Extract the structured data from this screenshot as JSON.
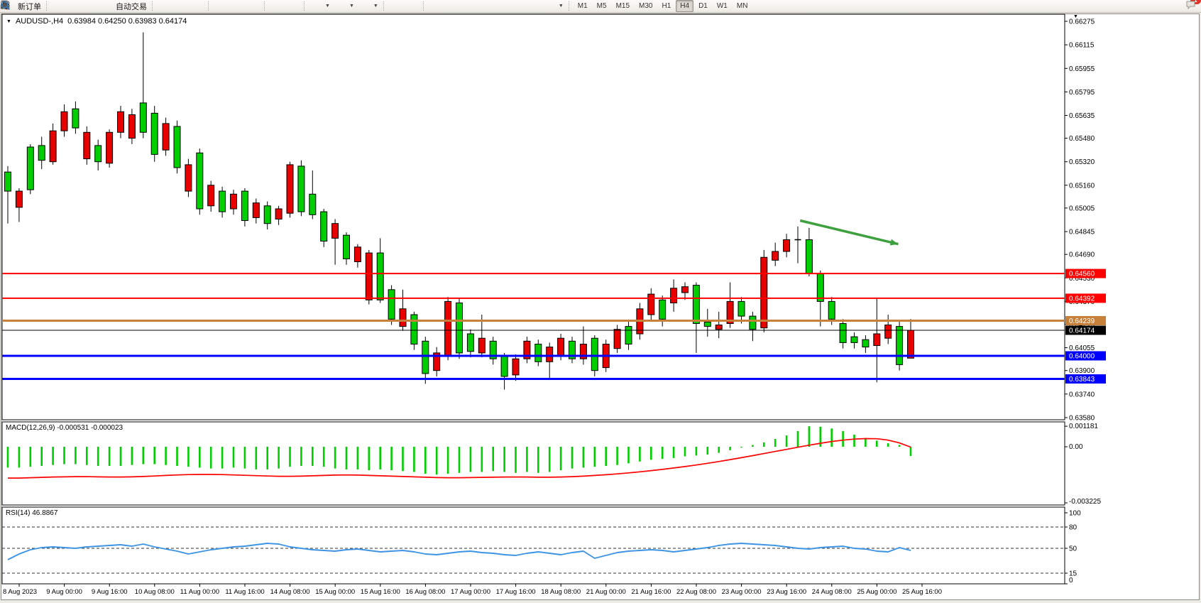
{
  "toolbar": {
    "new_order_label": "新订单",
    "autotrade_label": "自动交易",
    "timeframes": [
      "M1",
      "M5",
      "M15",
      "M30",
      "H1",
      "H4",
      "D1",
      "W1",
      "MN"
    ],
    "active_timeframe": "H4",
    "chat_badge": "1",
    "icon_names": [
      "new-order-icon",
      "styler-icon",
      "profile-icon",
      "signal-icon",
      "autotrade-icon",
      "bar-chart-icon",
      "candlestick-icon",
      "line-chart-icon",
      "zoom-in-icon",
      "zoom-out-icon",
      "tile-windows-icon",
      "chart-shift-icon",
      "autoscroll-icon",
      "indicators-icon",
      "periods-icon",
      "templates-icon",
      "cursor-icon",
      "crosshair-icon",
      "vertical-line-icon",
      "horizontal-line-icon",
      "trendline-icon",
      "channel-icon",
      "fibonacci-icon",
      "text-icon",
      "label-icon",
      "shapes-icon",
      "search-icon",
      "chat-icon"
    ]
  },
  "window": {
    "title_symbol": "AUDUSD-,H4",
    "title_ohlc": "0.63984 0.64250 0.63983 0.64174"
  },
  "chart_data": {
    "type": "candlestick",
    "symbol": "AUDUSD-",
    "timeframe": "H4",
    "current": {
      "open": "0.63984",
      "high": "0.64250",
      "low": "0.63983",
      "close": "0.64174"
    },
    "colors": {
      "up": "#E80000",
      "down": "#00CE00",
      "outline": "#000000"
    },
    "price_axis": [
      "0.66275",
      "0.66115",
      "0.65955",
      "0.65795",
      "0.65635",
      "0.65480",
      "0.65320",
      "0.65160",
      "0.65005",
      "0.64845",
      "0.64690",
      "0.64530",
      "0.64370",
      "0.64215",
      "0.64055",
      "0.63900",
      "0.63740",
      "0.63580"
    ],
    "time_axis": [
      "8 Aug 2023",
      "9 Aug 00:00",
      "9 Aug 16:00",
      "10 Aug 08:00",
      "11 Aug 00:00",
      "11 Aug 16:00",
      "14 Aug 08:00",
      "15 Aug 00:00",
      "15 Aug 16:00",
      "16 Aug 08:00",
      "17 Aug 00:00",
      "17 Aug 16:00",
      "18 Aug 08:00",
      "21 Aug 00:00",
      "21 Aug 16:00",
      "22 Aug 08:00",
      "23 Aug 00:00",
      "23 Aug 16:00",
      "24 Aug 08:00",
      "25 Aug 00:00",
      "25 Aug 16:00"
    ],
    "hlines": [
      {
        "price": 0.6456,
        "label": "0.64560",
        "color": "#FF0000",
        "width": 2
      },
      {
        "price": 0.64392,
        "label": "0.64392",
        "color": "#FF0000",
        "width": 2
      },
      {
        "price": 0.64239,
        "label": "0.64239",
        "color": "#C8813A",
        "width": 3
      },
      {
        "price": 0.64174,
        "label": "0.64174",
        "color": "#000000",
        "width": 1
      },
      {
        "price": 0.64,
        "label": "0.64000",
        "color": "#0000FF",
        "width": 3
      },
      {
        "price": 0.63843,
        "label": "0.63843",
        "color": "#0000FF",
        "width": 3
      }
    ],
    "arrow": {
      "start_bar": 70.2,
      "start_price": 0.6492,
      "end_bar": 78.9,
      "end_price": 0.6476,
      "color": "#3FA03F"
    },
    "candles": [
      [
        "G",
        0.6525,
        0.6512,
        0.6529,
        0.649
      ],
      [
        "R",
        0.6512,
        0.6501,
        0.6514,
        0.6491
      ],
      [
        "G",
        0.6542,
        0.6513,
        0.6544,
        0.651
      ],
      [
        "G",
        0.6543,
        0.6533,
        0.6549,
        0.6527
      ],
      [
        "R",
        0.6553,
        0.6532,
        0.6558,
        0.653
      ],
      [
        "R",
        0.6566,
        0.6553,
        0.6571,
        0.6549
      ],
      [
        "G",
        0.6568,
        0.6555,
        0.6573,
        0.6551
      ],
      [
        "R",
        0.6552,
        0.6534,
        0.6556,
        0.653
      ],
      [
        "G",
        0.6543,
        0.6532,
        0.6547,
        0.6526
      ],
      [
        "R",
        0.6552,
        0.6531,
        0.6554,
        0.6528
      ],
      [
        "R",
        0.6566,
        0.6552,
        0.657,
        0.6548
      ],
      [
        "R",
        0.6564,
        0.6548,
        0.6568,
        0.6544
      ],
      [
        "G",
        0.6572,
        0.6552,
        0.662,
        0.6548
      ],
      [
        "G",
        0.6565,
        0.6537,
        0.657,
        0.6532
      ],
      [
        "R",
        0.6558,
        0.654,
        0.6562,
        0.6536
      ],
      [
        "G",
        0.6556,
        0.6528,
        0.656,
        0.6524
      ],
      [
        "R",
        0.653,
        0.6512,
        0.6534,
        0.6508
      ],
      [
        "G",
        0.6538,
        0.65,
        0.6541,
        0.6496
      ],
      [
        "R",
        0.6516,
        0.6502,
        0.6519,
        0.6498
      ],
      [
        "G",
        0.6512,
        0.6498,
        0.6515,
        0.6494
      ],
      [
        "R",
        0.651,
        0.65,
        0.6513,
        0.6496
      ],
      [
        "G",
        0.6512,
        0.6492,
        0.6514,
        0.6488
      ],
      [
        "R",
        0.6504,
        0.6494,
        0.6507,
        0.649
      ],
      [
        "G",
        0.6502,
        0.649,
        0.6505,
        0.6486
      ],
      [
        "R",
        0.65,
        0.6493,
        0.6502,
        0.6489
      ],
      [
        "R",
        0.653,
        0.6497,
        0.6532,
        0.6494
      ],
      [
        "G",
        0.6529,
        0.6498,
        0.6533,
        0.6495
      ],
      [
        "G",
        0.651,
        0.6496,
        0.6526,
        0.6493
      ],
      [
        "G",
        0.6498,
        0.6478,
        0.65,
        0.6474
      ],
      [
        "R",
        0.649,
        0.648,
        0.6493,
        0.6462
      ],
      [
        "G",
        0.6482,
        0.6466,
        0.6484,
        0.6462
      ],
      [
        "R",
        0.6474,
        0.6464,
        0.6476,
        0.646
      ],
      [
        "R",
        0.647,
        0.6438,
        0.6472,
        0.6435
      ],
      [
        "G",
        0.647,
        0.6438,
        0.648,
        0.6436
      ],
      [
        "G",
        0.6445,
        0.6425,
        0.6448,
        0.6421
      ],
      [
        "R",
        0.6432,
        0.642,
        0.6445,
        0.6417
      ],
      [
        "G",
        0.6428,
        0.6408,
        0.643,
        0.6404
      ],
      [
        "G",
        0.641,
        0.6388,
        0.6413,
        0.6381
      ],
      [
        "R",
        0.6402,
        0.639,
        0.6406,
        0.6386
      ],
      [
        "R",
        0.6437,
        0.64,
        0.644,
        0.6397
      ],
      [
        "G",
        0.6436,
        0.6402,
        0.6439,
        0.6398
      ],
      [
        "G",
        0.6415,
        0.6403,
        0.6418,
        0.6399
      ],
      [
        "R",
        0.6412,
        0.6402,
        0.6428,
        0.6399
      ],
      [
        "G",
        0.641,
        0.6398,
        0.6413,
        0.6394
      ],
      [
        "G",
        0.64,
        0.6386,
        0.6402,
        0.6377
      ],
      [
        "R",
        0.6398,
        0.6387,
        0.6401,
        0.6383
      ],
      [
        "R",
        0.641,
        0.6398,
        0.6413,
        0.6395
      ],
      [
        "G",
        0.6408,
        0.6396,
        0.6411,
        0.6393
      ],
      [
        "R",
        0.6406,
        0.6396,
        0.6409,
        0.6385
      ],
      [
        "R",
        0.6412,
        0.64,
        0.6415,
        0.6397
      ],
      [
        "G",
        0.641,
        0.6398,
        0.6413,
        0.6395
      ],
      [
        "R",
        0.6408,
        0.6398,
        0.642,
        0.6394
      ],
      [
        "G",
        0.6412,
        0.639,
        0.6414,
        0.6386
      ],
      [
        "R",
        0.6408,
        0.6392,
        0.6411,
        0.6389
      ],
      [
        "R",
        0.6418,
        0.6405,
        0.6421,
        0.6402
      ],
      [
        "G",
        0.642,
        0.6408,
        0.6424,
        0.6404
      ],
      [
        "R",
        0.6432,
        0.6415,
        0.6436,
        0.6411
      ],
      [
        "R",
        0.6442,
        0.6428,
        0.6446,
        0.6424
      ],
      [
        "G",
        0.6438,
        0.6425,
        0.6441,
        0.642
      ],
      [
        "R",
        0.6446,
        0.6436,
        0.6452,
        0.643
      ],
      [
        "R",
        0.6447,
        0.6443,
        0.645,
        0.6438
      ],
      [
        "G",
        0.6448,
        0.6422,
        0.645,
        0.6402
      ],
      [
        "G",
        0.6423,
        0.642,
        0.6432,
        0.6413
      ],
      [
        "R",
        0.6421,
        0.6418,
        0.643,
        0.6412
      ],
      [
        "R",
        0.6437,
        0.6422,
        0.645,
        0.6419
      ],
      [
        "G",
        0.6437,
        0.6427,
        0.644,
        0.6422
      ],
      [
        "G",
        0.6427,
        0.6418,
        0.643,
        0.641
      ],
      [
        "R",
        0.6467,
        0.6419,
        0.6472,
        0.6416
      ],
      [
        "R",
        0.6471,
        0.6465,
        0.6477,
        0.6461
      ],
      [
        "R",
        0.6479,
        0.6471,
        0.6483,
        0.6467
      ],
      [
        "D",
        0.6479,
        0.6479,
        0.6488,
        0.6463
      ],
      [
        "G",
        0.6479,
        0.6456,
        0.6487,
        0.6454
      ],
      [
        "G",
        0.6456,
        0.6437,
        0.6458,
        0.642
      ],
      [
        "G",
        0.6437,
        0.6425,
        0.644,
        0.6421
      ],
      [
        "G",
        0.6422,
        0.6409,
        0.6425,
        0.6405
      ],
      [
        "G",
        0.6413,
        0.6409,
        0.6416,
        0.6405
      ],
      [
        "G",
        0.6411,
        0.6406,
        0.6414,
        0.6402
      ],
      [
        "R",
        0.6415,
        0.6407,
        0.6439,
        0.6382
      ],
      [
        "R",
        0.6421,
        0.6412,
        0.6428,
        0.6408
      ],
      [
        "G",
        0.642,
        0.6394,
        0.6424,
        0.639
      ],
      [
        "R",
        0.64174,
        0.63984,
        0.6425,
        0.63983
      ]
    ],
    "macd": {
      "label": "MACD(12,26,9)",
      "values_label": "-0.000531 -0.000023",
      "axis": [
        "0.001181",
        "0.00",
        "-0.003225"
      ],
      "hist_color": "#00CE00",
      "signal_color": "#FF0000",
      "hist_x1e4": [
        -12,
        -12,
        -11.5,
        -11,
        -10.5,
        -10,
        -10,
        -10.5,
        -11,
        -11,
        -11,
        -10.5,
        -10,
        -10,
        -10.5,
        -11,
        -11.5,
        -12,
        -12.5,
        -12.5,
        -12,
        -12.5,
        -13,
        -13,
        -12.5,
        -11.5,
        -11,
        -11,
        -11.5,
        -12.5,
        -13,
        -13,
        -13.5,
        -13,
        -13.5,
        -14,
        -14.5,
        -15.5,
        -16,
        -15.5,
        -15,
        -14.5,
        -14.5,
        -14,
        -14.5,
        -15,
        -14.5,
        -15,
        -14.5,
        -13.5,
        -12.5,
        -12,
        -11.5,
        -11,
        -10.5,
        -9.5,
        -8.5,
        -7.5,
        -7,
        -6.5,
        -5.5,
        -5,
        -4.5,
        -3.5,
        -2,
        -0.5,
        1,
        2.5,
        4.5,
        6.5,
        9,
        11.8,
        11.5,
        10.5,
        9,
        7,
        5,
        3.5,
        2,
        1,
        -5.3
      ],
      "signal_x1e4": [
        -18,
        -18,
        -17.8,
        -17.6,
        -17.4,
        -17.3,
        -17.2,
        -17.2,
        -17.3,
        -17.4,
        -17.4,
        -17.3,
        -17.1,
        -16.8,
        -16.5,
        -16.2,
        -16,
        -15.9,
        -15.9,
        -16,
        -16.2,
        -16.4,
        -16.6,
        -16.8,
        -17,
        -17,
        -16.9,
        -16.7,
        -16.5,
        -16.3,
        -16.2,
        -16.3,
        -16.5,
        -16.7,
        -16.9,
        -17.1,
        -17.3,
        -17.5,
        -17.7,
        -17.8,
        -17.8,
        -17.7,
        -17.6,
        -17.5,
        -17.4,
        -17.4,
        -17.4,
        -17.5,
        -17.5,
        -17.4,
        -17.2,
        -16.9,
        -16.5,
        -16.1,
        -15.6,
        -15,
        -14.4,
        -13.7,
        -13,
        -12.2,
        -11.4,
        -10.5,
        -9.5,
        -8.5,
        -7.4,
        -6.3,
        -5.1,
        -3.9,
        -2.7,
        -1.5,
        -0.3,
        0.9,
        2,
        3,
        3.8,
        4.4,
        4.7,
        4.6,
        3.8,
        2.2,
        -0.2
      ]
    },
    "rsi": {
      "label": "RSI(14) 46.8867",
      "color": "#3E94E4",
      "levels": [
        80,
        50,
        15
      ],
      "axis": [
        "100",
        "80",
        "50",
        "15",
        "0"
      ],
      "values": [
        34,
        42,
        48,
        51,
        52,
        51,
        50,
        52,
        53,
        54,
        55,
        53,
        56,
        52,
        49,
        46,
        42,
        45,
        48,
        50,
        52,
        53,
        55,
        57,
        56,
        52,
        50,
        48,
        47,
        46,
        48,
        49,
        47,
        45,
        46,
        47,
        45,
        42,
        41,
        43,
        45,
        46,
        44,
        43,
        41,
        40,
        43,
        45,
        43,
        41,
        44,
        46,
        36,
        40,
        44,
        46,
        47,
        48,
        47,
        45,
        47,
        49,
        51,
        54,
        56,
        57,
        56,
        55,
        54,
        52,
        50,
        49,
        51,
        52,
        53,
        50,
        49,
        46,
        45,
        51,
        47
      ]
    }
  }
}
